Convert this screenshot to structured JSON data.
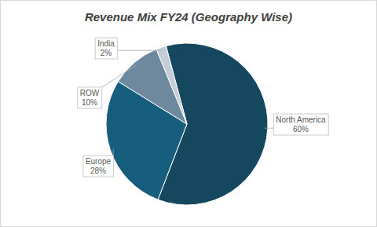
{
  "chart_data": {
    "type": "pie",
    "title": "Revenue Mix FY24 (Geography Wise)",
    "categories": [
      "North America",
      "Europe",
      "ROW",
      "India"
    ],
    "values": [
      60,
      28,
      10,
      2
    ],
    "value_labels": [
      "60%",
      "28%",
      "10%",
      "2%"
    ],
    "colors": [
      "#15475f",
      "#175d7e",
      "#6e889e",
      "#c3ced8"
    ],
    "data_labels": true
  }
}
